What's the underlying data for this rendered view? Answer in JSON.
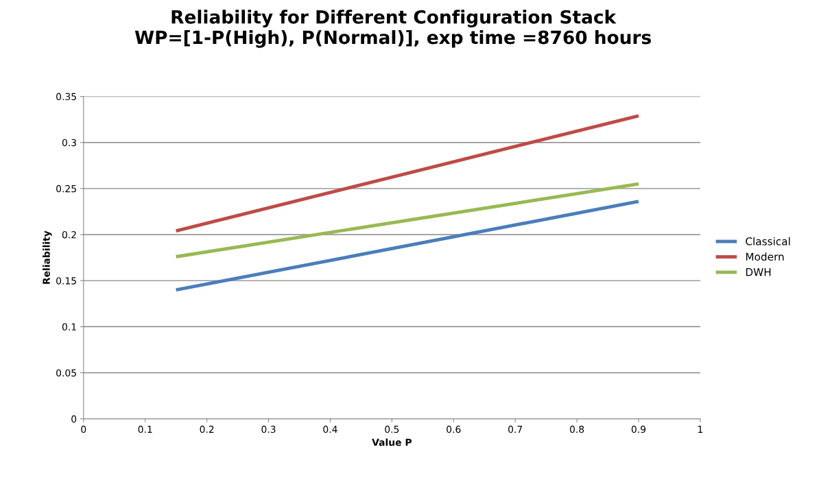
{
  "chart_data": {
    "type": "line",
    "title": "Reliability for Different Configuration Stack\nWP=[1-P(High), P(Normal)], exp time =8760 hours",
    "xlabel": "Value P",
    "ylabel": "Reliability",
    "x": [
      0.15,
      0.9
    ],
    "series": [
      {
        "name": "Classical",
        "color": "#4a7ebb",
        "values": [
          0.14,
          0.236
        ]
      },
      {
        "name": "Modern",
        "color": "#be4b48",
        "values": [
          0.204,
          0.329
        ]
      },
      {
        "name": "DWH",
        "color": "#98b954",
        "values": [
          0.176,
          0.255
        ]
      }
    ],
    "xlim": [
      0,
      1
    ],
    "xticks": [
      0,
      0.1,
      0.2,
      0.3,
      0.4,
      0.5,
      0.6,
      0.7,
      0.8,
      0.9,
      1
    ],
    "ylim": [
      0,
      0.35
    ],
    "yticks": [
      0,
      0.05,
      0.1,
      0.15,
      0.2,
      0.25,
      0.3,
      0.35
    ],
    "grid": "y",
    "legend": "right",
    "marker": "none",
    "line_style": "solid"
  }
}
